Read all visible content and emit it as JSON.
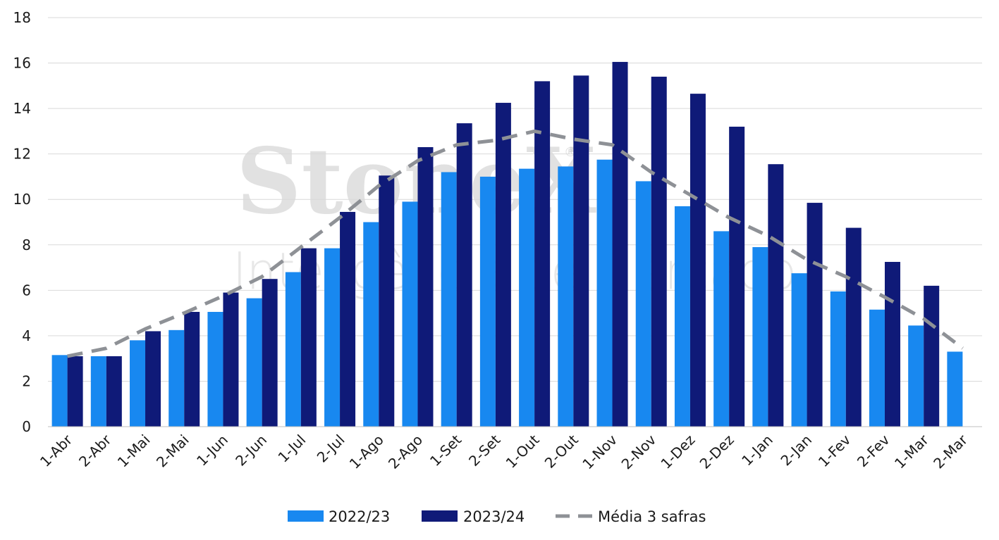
{
  "watermark": {
    "brand": "StoneX",
    "registered": "®",
    "subtitle": "Inteligência de Mercado"
  },
  "chart_data": {
    "type": "bar",
    "title": "",
    "xlabel": "",
    "ylabel": "",
    "ylim": [
      0,
      18
    ],
    "yticks": [
      0,
      2,
      4,
      6,
      8,
      10,
      12,
      14,
      16,
      18
    ],
    "grid": true,
    "legend_position": "bottom",
    "categories": [
      "1-Abr",
      "2-Abr",
      "1-Mai",
      "2-Mai",
      "1-Jun",
      "2-Jun",
      "1-Jul",
      "2-Jul",
      "1-Ago",
      "2-Ago",
      "1-Set",
      "2-Set",
      "1-Out",
      "2-Out",
      "1-Nov",
      "2-Nov",
      "1-Dez",
      "2-Dez",
      "1-Jan",
      "2-Jan",
      "1-Fev",
      "2-Fev",
      "1-Mar",
      "2-Mar"
    ],
    "series": [
      {
        "name": "2022/23",
        "type": "bar",
        "color": "#1888f0",
        "values": [
          3.15,
          3.1,
          3.8,
          4.25,
          5.05,
          5.65,
          6.8,
          7.85,
          9.0,
          9.9,
          11.2,
          11.0,
          11.35,
          11.45,
          11.75,
          10.8,
          9.7,
          8.6,
          7.9,
          6.75,
          5.95,
          5.15,
          4.45,
          3.3
        ]
      },
      {
        "name": "2023/24",
        "type": "bar",
        "color": "#0f1a78",
        "values": [
          3.1,
          3.1,
          4.2,
          5.05,
          5.9,
          6.5,
          7.85,
          9.45,
          11.05,
          12.3,
          13.35,
          14.25,
          15.2,
          15.45,
          16.05,
          15.4,
          14.65,
          13.2,
          11.55,
          9.85,
          8.75,
          7.25,
          6.2,
          null
        ]
      },
      {
        "name": "Média 3 safras",
        "type": "line",
        "style": "dashed",
        "color": "#8e9196",
        "values": [
          3.1,
          3.45,
          4.3,
          5.0,
          5.75,
          6.6,
          7.9,
          9.2,
          10.6,
          11.7,
          12.4,
          12.6,
          13.0,
          12.65,
          12.4,
          11.2,
          10.2,
          9.2,
          8.4,
          7.35,
          6.6,
          5.7,
          4.75,
          3.45
        ]
      }
    ]
  }
}
